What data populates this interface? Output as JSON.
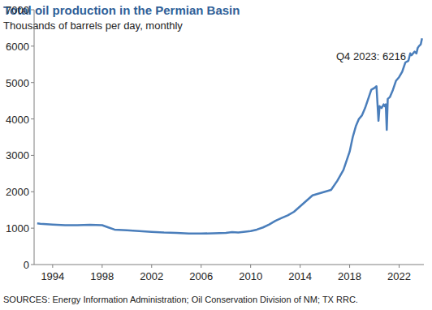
{
  "chart_data": {
    "type": "line",
    "title": "Total oil production in the Permian Basin",
    "subtitle": "Thousands of barrels per day, monthly",
    "annotation": "Q4 2023: 6216",
    "source": "SOURCES: Energy Information Administration; Oil Conservation Division of NM; TX RRC.",
    "color": "#4a7ebb",
    "x": [
      1992.75,
      1993,
      1994,
      1995,
      1996,
      1997,
      1998,
      1998.5,
      1999,
      2000,
      2001,
      2002,
      2003,
      2004,
      2005,
      2006,
      2007,
      2008,
      2008.5,
      2009,
      2010,
      2010.5,
      2011,
      2011.5,
      2012,
      2012.5,
      2013,
      2013.5,
      2014,
      2014.5,
      2015,
      2015.5,
      2016,
      2016.5,
      2017,
      2017.5,
      2018,
      2018.25,
      2018.5,
      2018.75,
      2019,
      2019.25,
      2019.5,
      2019.75,
      2020,
      2020.17,
      2020.33,
      2020.42,
      2020.58,
      2020.75,
      2020.83,
      2020.92,
      2021,
      2021.08,
      2021.25,
      2021.5,
      2021.75,
      2022,
      2022.25,
      2022.5,
      2022.75,
      2022.9,
      2023,
      2023.25,
      2023.4,
      2023.5,
      2023.6,
      2023.75,
      2023.85
    ],
    "values": [
      1130,
      1120,
      1100,
      1080,
      1080,
      1090,
      1080,
      1020,
      960,
      940,
      920,
      900,
      880,
      870,
      850,
      850,
      860,
      870,
      890,
      880,
      920,
      960,
      1020,
      1100,
      1200,
      1280,
      1350,
      1450,
      1600,
      1750,
      1900,
      1950,
      2000,
      2050,
      2300,
      2600,
      3100,
      3500,
      3800,
      4000,
      4100,
      4300,
      4550,
      4800,
      4850,
      4900,
      3950,
      4350,
      4300,
      4400,
      4350,
      4400,
      3700,
      4550,
      4600,
      4800,
      5050,
      5150,
      5300,
      5550,
      5600,
      5800,
      5750,
      5850,
      5800,
      5950,
      6000,
      6050,
      6216
    ],
    "xlim": [
      1992.5,
      2024
    ],
    "xticks": [
      1994,
      1998,
      2002,
      2006,
      2010,
      2014,
      2018,
      2022
    ],
    "ylim": [
      0,
      7000
    ],
    "yticks": [
      0,
      1000,
      2000,
      3000,
      4000,
      5000,
      6000,
      7000
    ],
    "grid": false
  }
}
